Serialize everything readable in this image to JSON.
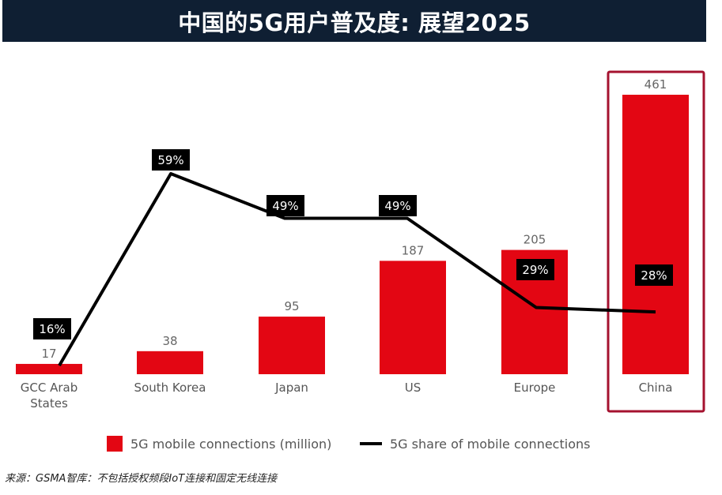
{
  "title": "中国的5G用户普及度: 展望2025",
  "colors": {
    "bar": "#e30613",
    "line": "#000000",
    "highlight_border": "#a5122f",
    "title_bg": "#0f1f33"
  },
  "chart_data": {
    "type": "bar+line",
    "categories": [
      "GCC Arab States",
      "South Korea",
      "Japan",
      "US",
      "Europe",
      "China"
    ],
    "category_lines": [
      [
        "GCC Arab",
        "States"
      ],
      [
        "South Korea"
      ],
      [
        "Japan"
      ],
      [
        "US"
      ],
      [
        "Europe"
      ],
      [
        "China"
      ]
    ],
    "series": [
      {
        "name": "5G mobile connections (million)",
        "kind": "bar",
        "values": [
          17,
          38,
          95,
          187,
          205,
          461
        ],
        "labels": [
          "17",
          "38",
          "95",
          "187",
          "205",
          "461"
        ]
      },
      {
        "name": "5G share of mobile connections",
        "kind": "line",
        "values": [
          16,
          59,
          49,
          49,
          29,
          28
        ],
        "labels": [
          "16%",
          "59%",
          "49%",
          "49%",
          "29%",
          "28%"
        ]
      }
    ],
    "highlight_category": "China",
    "grid": false,
    "legend_position": "bottom"
  },
  "legend": {
    "bar_label": "5G mobile connections (million)",
    "line_label": "5G share of mobile connections"
  },
  "source": "来源：GSMA智库：不包括授权频段IoT连接和固定无线连接"
}
